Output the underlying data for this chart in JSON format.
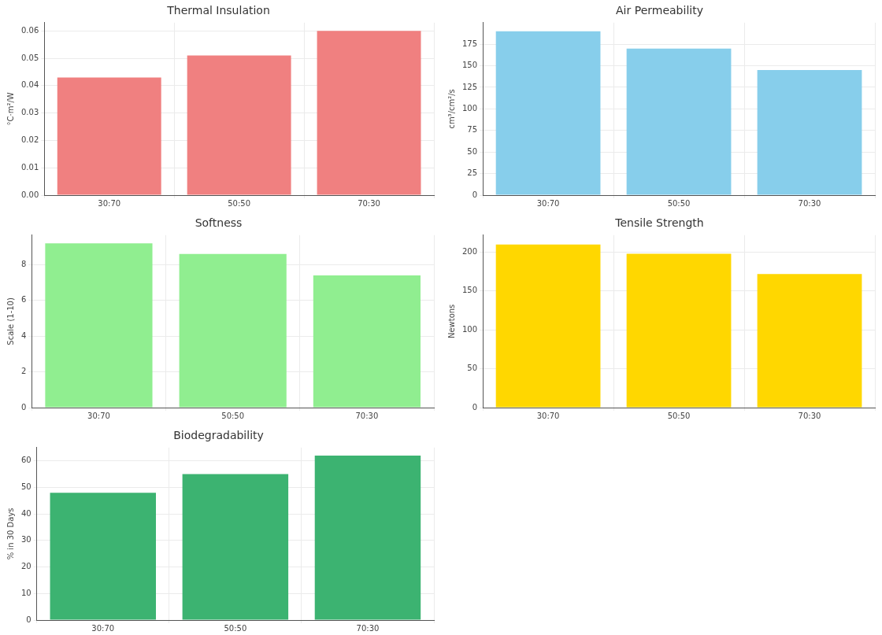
{
  "chart_data": [
    {
      "type": "bar",
      "title": "Thermal Insulation",
      "ylabel": "°C·m²/W",
      "categories": [
        "30:70",
        "50:50",
        "70:30"
      ],
      "values": [
        0.043,
        0.051,
        0.06
      ],
      "color": "#f08080",
      "ylim": [
        0,
        0.063
      ],
      "yticks": [
        {
          "value": 0,
          "label": "0.00"
        },
        0.01,
        0.02,
        0.03,
        0.04,
        0.05,
        0.06
      ],
      "grid": true
    },
    {
      "type": "bar",
      "title": "Air Permeability",
      "ylabel": "cm³/cm²/s",
      "categories": [
        "30:70",
        "50:50",
        "70:30"
      ],
      "values": [
        190,
        170,
        145
      ],
      "color": "#87ceeb",
      "ylim": [
        0,
        200
      ],
      "yticks": [
        0,
        25,
        50,
        75,
        100,
        125,
        150,
        175
      ],
      "grid": true
    },
    {
      "type": "bar",
      "title": "Softness",
      "ylabel": "Scale (1-10)",
      "categories": [
        "30:70",
        "50:50",
        "70:30"
      ],
      "values": [
        9.2,
        8.6,
        7.4
      ],
      "color": "#90ee90",
      "ylim": [
        0,
        9.66
      ],
      "yticks": [
        0,
        2,
        4,
        6,
        8
      ],
      "grid": true
    },
    {
      "type": "bar",
      "title": "Tensile Strength",
      "ylabel": "Newtons",
      "categories": [
        "30:70",
        "50:50",
        "70:30"
      ],
      "values": [
        210,
        198,
        172
      ],
      "color": "#ffd700",
      "ylim": [
        0,
        222
      ],
      "yticks": [
        0,
        50,
        100,
        150,
        200
      ],
      "grid": true
    },
    {
      "type": "bar",
      "title": "Biodegradability",
      "ylabel": "% in 30 Days",
      "categories": [
        "30:70",
        "50:50",
        "70:30"
      ],
      "values": [
        48,
        55,
        62
      ],
      "color": "#3cb371",
      "ylim": [
        0,
        65
      ],
      "yticks": [
        0,
        10,
        20,
        30,
        40,
        50,
        60
      ],
      "grid": true
    }
  ]
}
